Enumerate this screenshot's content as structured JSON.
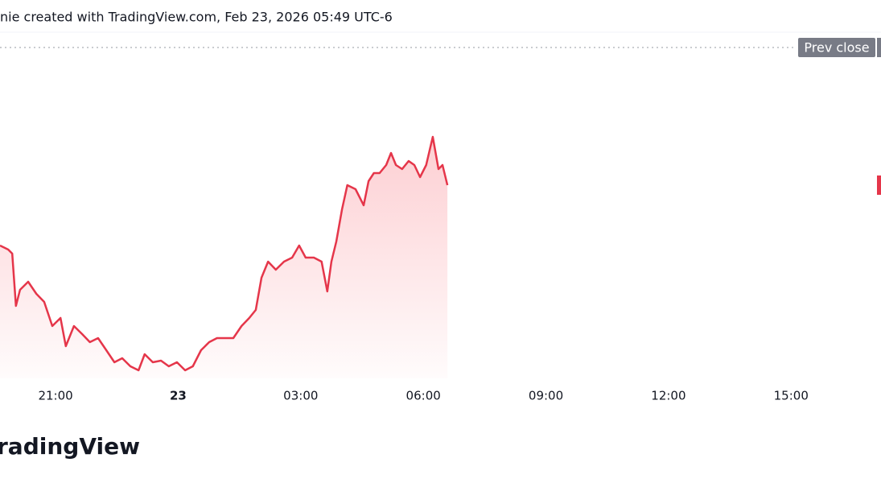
{
  "chart_data": {
    "type": "line",
    "header": "nie created with TradingView.com, Feb 23, 2026 05:49 UTC-6",
    "brand": "radingView",
    "reference_line": {
      "label": "Prev close",
      "value": 411
    },
    "color": "#e5364a",
    "x": [
      19.64,
      19.84,
      19.94,
      20.03,
      20.13,
      20.33,
      20.53,
      20.72,
      20.92,
      21.12,
      21.25,
      21.45,
      21.65,
      21.84,
      22.04,
      22.24,
      22.44,
      22.63,
      22.83,
      23.03,
      23.18,
      23.38,
      23.58,
      23.77,
      23.97,
      24.17,
      24.36,
      24.56,
      24.76,
      24.95,
      25.15,
      25.35,
      25.55,
      25.74,
      25.9,
      26.04,
      26.2,
      26.39,
      26.59,
      26.79,
      26.96,
      27.12,
      27.32,
      27.51,
      27.65,
      27.75,
      27.87,
      28.01,
      28.14,
      28.34,
      28.54,
      28.66,
      28.79,
      28.93,
      29.09,
      29.21,
      29.33,
      29.48,
      29.64,
      29.78,
      29.92,
      30.07,
      30.23,
      30.37,
      30.47,
      30.59
    ],
    "values": [
      165,
      160,
      155,
      90,
      110,
      120,
      105,
      95,
      65,
      75,
      40,
      65,
      55,
      45,
      50,
      35,
      20,
      25,
      15,
      10,
      30,
      20,
      22,
      15,
      20,
      10,
      15,
      35,
      45,
      50,
      50,
      50,
      65,
      75,
      85,
      125,
      145,
      135,
      145,
      150,
      165,
      150,
      150,
      145,
      108,
      145,
      170,
      210,
      240,
      235,
      215,
      245,
      255,
      255,
      265,
      280,
      265,
      260,
      270,
      265,
      250,
      265,
      300,
      260,
      265,
      240
    ],
    "xlim": [
      19.64,
      41.2
    ],
    "ylim": [
      0,
      430
    ],
    "xticks": [
      {
        "value": 21,
        "label": "21:00"
      },
      {
        "value": 24,
        "label": "23"
      },
      {
        "value": 27,
        "label": "03:00"
      },
      {
        "value": 30,
        "label": "06:00"
      },
      {
        "value": 33,
        "label": "09:00"
      },
      {
        "value": 36,
        "label": "12:00"
      },
      {
        "value": 39,
        "label": "15:00"
      }
    ]
  }
}
